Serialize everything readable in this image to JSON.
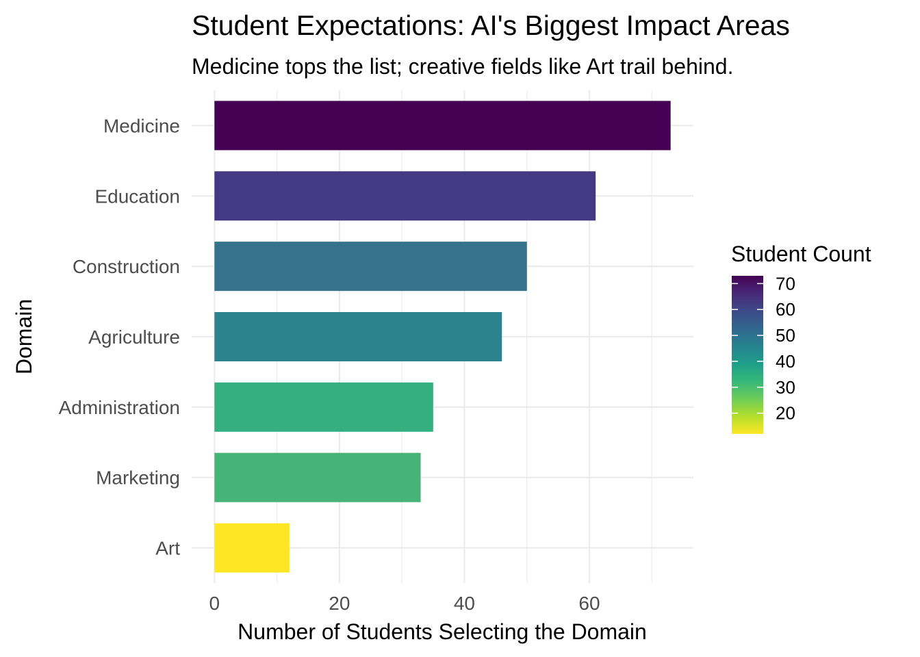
{
  "chart_data": {
    "type": "bar",
    "orientation": "horizontal",
    "title": "Student Expectations: AI's Biggest Impact Areas",
    "subtitle": "Medicine tops the list; creative fields like Art trail behind.",
    "xlabel": "Number of Students Selecting the Domain",
    "ylabel": "Domain",
    "categories": [
      "Medicine",
      "Education",
      "Construction",
      "Agriculture",
      "Administration",
      "Marketing",
      "Art"
    ],
    "values": [
      73,
      61,
      50,
      46,
      35,
      33,
      12
    ],
    "xlim": [
      -3.65,
      76.65
    ],
    "xticks": [
      0,
      20,
      40,
      60
    ],
    "grid": true,
    "legend": {
      "title": "Student Count",
      "placement": "right",
      "type": "colorbar",
      "range": [
        12,
        73
      ],
      "ticks": [
        70,
        60,
        50,
        40,
        30,
        20
      ]
    },
    "colors": [
      "#440154",
      "#443A83",
      "#35738D",
      "#2C838E",
      "#35AE80",
      "#46B378",
      "#FDE725"
    ],
    "colorscale": [
      "#FDE725",
      "#B4DE2C",
      "#6DCD59",
      "#35B779",
      "#1F9E89",
      "#26828E",
      "#31688E",
      "#3E4A89",
      "#482878",
      "#440154"
    ]
  }
}
